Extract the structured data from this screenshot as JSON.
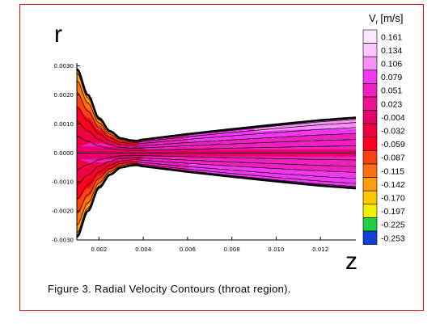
{
  "figure": {
    "caption": "Figure 3. Radial Velocity Contours (throat region)."
  },
  "chart_data": {
    "type": "heatmap",
    "title": "",
    "xlabel": "z",
    "ylabel": "r",
    "xlim": [
      0.001,
      0.0136
    ],
    "ylim": [
      -0.003,
      0.0031
    ],
    "x_ticks": [
      {
        "value": 0.002,
        "label": "0.002"
      },
      {
        "value": 0.004,
        "label": "0.004"
      },
      {
        "value": 0.006,
        "label": "0.006"
      },
      {
        "value": 0.008,
        "label": "0.008"
      },
      {
        "value": 0.01,
        "label": "0.010"
      },
      {
        "value": 0.012,
        "label": "0.012"
      }
    ],
    "y_ticks": [
      {
        "value": 0.003,
        "label": "0.0030"
      },
      {
        "value": 0.002,
        "label": "0.0020"
      },
      {
        "value": 0.001,
        "label": "0.0010"
      },
      {
        "value": 0.0,
        "label": "0.0000"
      },
      {
        "value": -0.001,
        "label": "-0.0010"
      },
      {
        "value": -0.002,
        "label": "-0.0020"
      },
      {
        "value": -0.003,
        "label": "-0.0030"
      }
    ],
    "nozzle_wall": {
      "z": [
        0.001,
        0.0015,
        0.002,
        0.0025,
        0.003,
        0.0035,
        0.0037,
        0.004,
        0.006,
        0.008,
        0.01,
        0.012,
        0.0136
      ],
      "r": [
        0.0029,
        0.002,
        0.0012,
        0.00075,
        0.0005,
        0.00043,
        0.00042,
        0.00046,
        0.00065,
        0.00082,
        0.00098,
        0.00113,
        0.00122
      ]
    },
    "legend": {
      "title_main": "V",
      "title_sub": "r",
      "title_unit": "[m/s]",
      "placement": "right",
      "levels": [
        {
          "value": "0.161",
          "color": "#ffe8ff"
        },
        {
          "value": "0.134",
          "color": "#ffc6ff"
        },
        {
          "value": "0.106",
          "color": "#f890f8"
        },
        {
          "value": "0.079",
          "color": "#f038f0"
        },
        {
          "value": "0.051",
          "color": "#f020c0"
        },
        {
          "value": "0.023",
          "color": "#f01090"
        },
        {
          "value": "-0.004",
          "color": "#e8006a"
        },
        {
          "value": "-0.032",
          "color": "#f00040"
        },
        {
          "value": "-0.059",
          "color": "#ff0020"
        },
        {
          "value": "-0.087",
          "color": "#ff4010"
        },
        {
          "value": "-0.115",
          "color": "#ff7010"
        },
        {
          "value": "-0.142",
          "color": "#ff9c10"
        },
        {
          "value": "-0.170",
          "color": "#ffc800"
        },
        {
          "value": "-0.197",
          "color": "#f0f000"
        },
        {
          "value": "-0.225",
          "color": "#20d040"
        },
        {
          "value": "-0.253",
          "color": "#1040d8"
        }
      ]
    }
  }
}
